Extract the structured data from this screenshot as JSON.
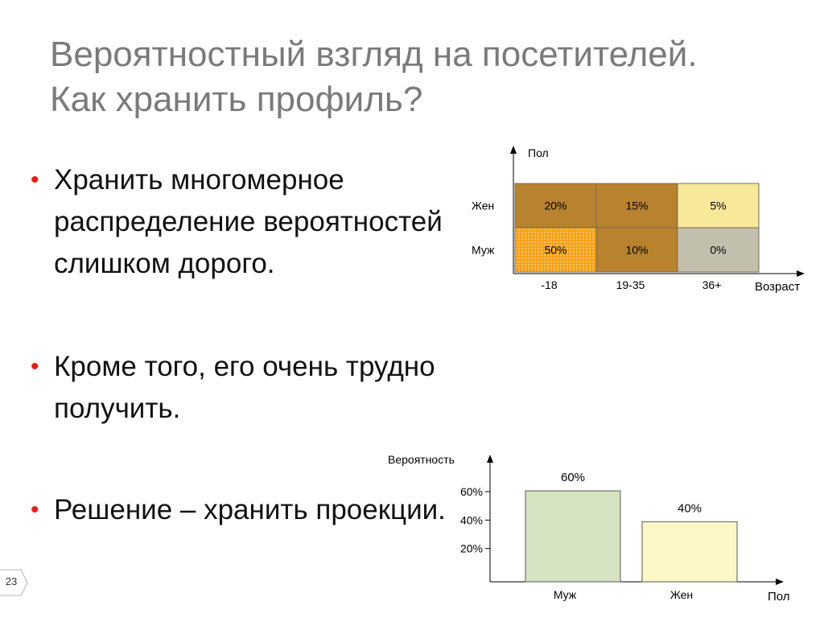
{
  "slide": {
    "title_line1": "Вероятностный взгляд на посетителей.",
    "title_line2": "Как хранить профиль?",
    "bullets": [
      {
        "text": "Хранить многомерное распределение вероятностей слишком дорого."
      },
      {
        "text": "Кроме того, его очень трудно получить."
      },
      {
        "text": "Решение – хранить проекции."
      }
    ],
    "page_number": "23",
    "bullet_color": "#e0201a"
  },
  "chart_data": [
    {
      "type": "heatmap",
      "y_axis_label": "Пол",
      "x_axis_label": "Возраст",
      "rows": [
        "Жен",
        "Муж"
      ],
      "columns": [
        "-18",
        "19-35",
        "36+"
      ],
      "cells": [
        [
          {
            "label": "20%",
            "color": "#b8822e"
          },
          {
            "label": "15%",
            "color": "#b8822e"
          },
          {
            "label": "5%",
            "color": "#f8e99a"
          }
        ],
        [
          {
            "label": "50%",
            "color": "#f5a31a",
            "dotted": true
          },
          {
            "label": "10%",
            "color": "#b8822e"
          },
          {
            "label": "0%",
            "color": "#c2c0ad"
          }
        ]
      ]
    },
    {
      "type": "bar",
      "y_axis_label": "Вероятность",
      "x_axis_label": "Пол",
      "categories": [
        "Муж",
        "Жен"
      ],
      "values": [
        60,
        40
      ],
      "value_labels": [
        "60%",
        "40%"
      ],
      "bar_colors": [
        "#d6e3c2",
        "#fbf7c6"
      ],
      "y_ticks": [
        20,
        40,
        60
      ],
      "y_tick_labels": [
        "20%",
        "40%",
        "60%"
      ]
    }
  ]
}
